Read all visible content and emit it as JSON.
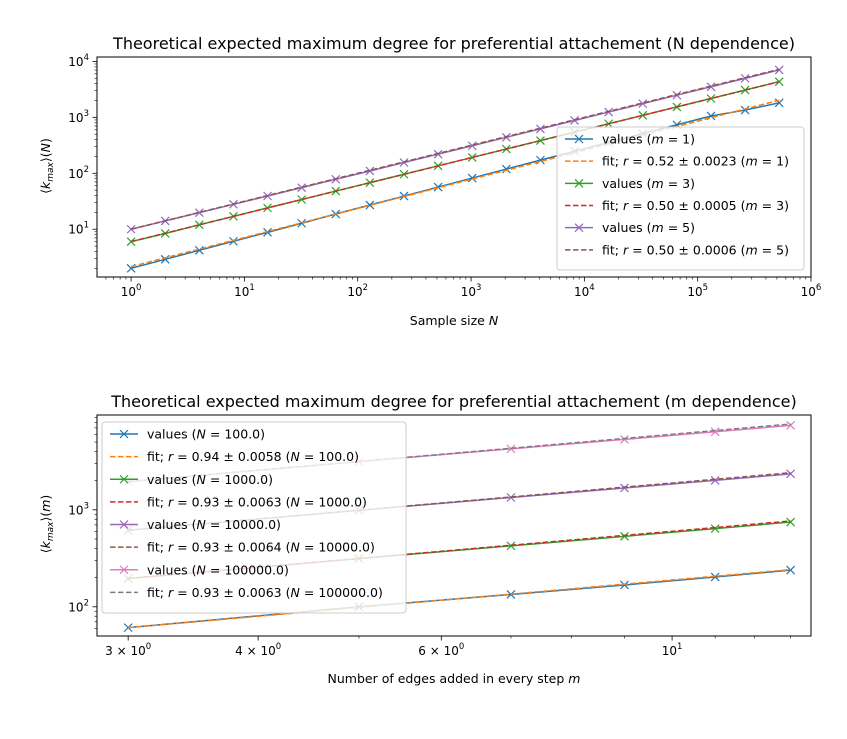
{
  "chart_data": [
    {
      "type": "line",
      "title": "Theoretical expected maximum degree for preferential attachement (N dependence)",
      "xlabel": "Sample size N",
      "ylabel": "⟨k_max⟩(N)",
      "xscale": "log",
      "yscale": "log",
      "xlim": [
        0.5,
        1000000
      ],
      "ylim": [
        1.4,
        12000
      ],
      "xticks": [
        {
          "v": 1,
          "base": "10",
          "exp": "0"
        },
        {
          "v": 10,
          "base": "10",
          "exp": "1"
        },
        {
          "v": 100,
          "base": "10",
          "exp": "2"
        },
        {
          "v": 1000,
          "base": "10",
          "exp": "3"
        },
        {
          "v": 10000,
          "base": "10",
          "exp": "4"
        },
        {
          "v": 100000,
          "base": "10",
          "exp": "5"
        },
        {
          "v": 1000000,
          "base": "10",
          "exp": "6"
        }
      ],
      "yticks": [
        {
          "v": 10,
          "base": "10",
          "exp": "1"
        },
        {
          "v": 100,
          "base": "10",
          "exp": "2"
        },
        {
          "v": 1000,
          "base": "10",
          "exp": "3"
        },
        {
          "v": 10000,
          "base": "10",
          "exp": "4"
        }
      ],
      "legend_placement": "lower-right",
      "x": [
        1,
        2,
        4,
        8,
        16,
        32,
        64,
        128,
        256,
        512,
        1024,
        2048,
        4096,
        8192,
        16384,
        32768,
        65536,
        131072,
        262144,
        524288
      ],
      "series": [
        {
          "name": "values (m = 1)",
          "kind": "values",
          "color": "#1f77b4",
          "values": [
            2.0,
            2.9,
            4.2,
            6.1,
            8.8,
            12.8,
            18.7,
            27.1,
            39.2,
            56.8,
            82.2,
            119,
            172,
            248,
            357,
            514,
            738,
            1059,
            1350,
            1820
          ]
        },
        {
          "name": "fit; r = 0.52 ± 0.0023 (m = 1)",
          "kind": "fit",
          "color": "#ff7f0e",
          "a": 2.15,
          "r": 0.52
        },
        {
          "name": "values (m = 3)",
          "kind": "values",
          "color": "#2ca02c",
          "values": [
            6.0,
            8.4,
            12.0,
            17.0,
            24.1,
            34.0,
            48.1,
            68.0,
            96.2,
            136,
            192,
            272,
            385,
            544,
            769,
            1088,
            1538,
            2175,
            3076,
            4350
          ]
        },
        {
          "name": "fit; r = 0.50 ± 0.0005 (m = 3)",
          "kind": "fit",
          "color": "#d62728",
          "a": 6.0,
          "r": 0.5
        },
        {
          "name": "values (m = 5)",
          "kind": "values",
          "color": "#9467bd",
          "values": [
            10.0,
            14.1,
            19.8,
            27.9,
            39.3,
            55.4,
            78.2,
            110,
            156,
            220,
            311,
            440,
            622,
            880,
            1245,
            1760,
            2490,
            3521,
            4980,
            7050
          ]
        },
        {
          "name": "fit; r = 0.50 ± 0.0006 (m = 5)",
          "kind": "fit",
          "color": "#8c564b",
          "a": 10.0,
          "r": 0.5
        }
      ]
    },
    {
      "type": "line",
      "title": "Theoretical expected maximum degree for preferential attachement (m dependence)",
      "xlabel": "Number of edges added in every step m",
      "ylabel": "⟨k_max⟩(m)",
      "xscale": "log",
      "yscale": "log",
      "xlim": [
        2.8,
        13.6
      ],
      "ylim": [
        50,
        9500
      ],
      "xticks": [
        {
          "v": 3,
          "base": "3 × 10",
          "exp": "0"
        },
        {
          "v": 4,
          "base": "4 × 10",
          "exp": "0"
        },
        {
          "v": 6,
          "base": "6 × 10",
          "exp": "0"
        },
        {
          "v": 10,
          "base": "10",
          "exp": "1"
        }
      ],
      "xticks_minor": [
        5,
        7,
        8,
        9,
        11,
        12,
        13
      ],
      "yticks": [
        {
          "v": 100,
          "base": "10",
          "exp": "2"
        },
        {
          "v": 1000,
          "base": "10",
          "exp": "3"
        }
      ],
      "legend_placement": "upper-left",
      "x": [
        3,
        5,
        7,
        9,
        11,
        13
      ],
      "series": [
        {
          "name": "values (N = 100.0)",
          "kind": "values",
          "color": "#1f77b4",
          "values": [
            61,
            100,
            134,
            168,
            203,
            239
          ]
        },
        {
          "name": "fit; r = 0.94 ± 0.0058 (N = 100.0)",
          "kind": "fit",
          "color": "#ff7f0e",
          "a": 21.7,
          "r": 0.94
        },
        {
          "name": "values (N = 1000.0)",
          "kind": "values",
          "color": "#2ca02c",
          "values": [
            195,
            314,
            425,
            533,
            640,
            748
          ]
        },
        {
          "name": "fit; r = 0.93 ± 0.0063 (N = 1000.0)",
          "kind": "fit",
          "color": "#d62728",
          "a": 70.6,
          "r": 0.93
        },
        {
          "name": "values (N = 10000.0)",
          "kind": "values",
          "color": "#9467bd",
          "values": [
            615,
            988,
            1340,
            1680,
            2010,
            2350
          ]
        },
        {
          "name": "fit; r = 0.93 ± 0.0064 (N = 10000.0)",
          "kind": "fit",
          "color": "#8c564b",
          "a": 222,
          "r": 0.93
        },
        {
          "name": "values (N = 100000.0)",
          "kind": "values",
          "color": "#e377c2",
          "values": [
            1950,
            3140,
            4250,
            5320,
            6380,
            7430
          ]
        },
        {
          "name": "fit; r = 0.93 ± 0.0063 (N = 100000.0)",
          "kind": "fit",
          "color": "#7f7f7f",
          "a": 706,
          "r": 0.93
        }
      ]
    }
  ]
}
